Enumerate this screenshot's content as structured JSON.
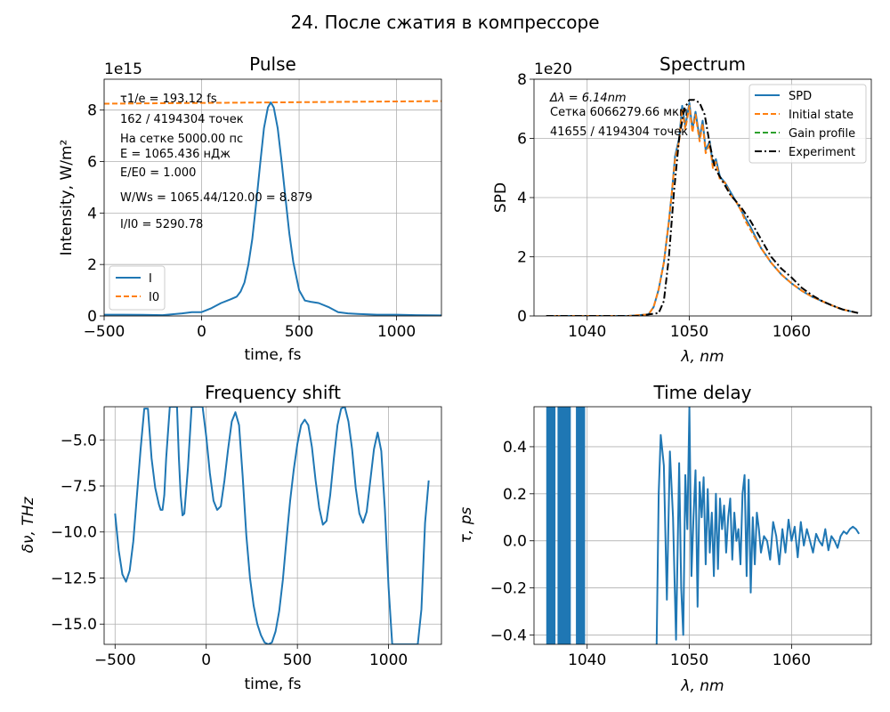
{
  "figure": {
    "suptitle": "24. После сжатия в компрессоре"
  },
  "colors": {
    "blue": "#1f77b4",
    "orange": "#ff7f0e",
    "green": "#2ca02c",
    "black": "#000000"
  },
  "chart_data": [
    {
      "id": "pulse",
      "type": "line",
      "title": "Pulse",
      "xlabel": "time, fs",
      "ylabel": "Intensity, W/m²",
      "offset_text": "1e15",
      "xlim": [
        -500,
        1230
      ],
      "ylim": [
        0,
        9.2
      ],
      "xticks": [
        -500,
        0,
        500,
        1000
      ],
      "yticks": [
        0,
        2,
        4,
        6,
        8
      ],
      "grid": true,
      "legend_position": "lower-left",
      "annotations": [
        "τ1/e = 193.12 fs",
        "162 / 4194304 точек",
        "На сетке 5000.00 пс",
        "E = 1065.436 нДж",
        "E/E0 = 1.000",
        "W/Ws = 1065.44/120.00 = 8.879",
        "I/I0 = 5290.78"
      ],
      "series": [
        {
          "name": "I",
          "style": "solid",
          "x": [
            -500,
            -400,
            -300,
            -200,
            -100,
            -50,
            0,
            50,
            100,
            150,
            180,
            200,
            220,
            240,
            260,
            280,
            300,
            320,
            340,
            355,
            370,
            390,
            410,
            430,
            450,
            470,
            500,
            530,
            560,
            600,
            650,
            700,
            750,
            800,
            900,
            1000,
            1100,
            1230
          ],
          "y": [
            0.05,
            0.05,
            0.04,
            0.03,
            0.1,
            0.15,
            0.15,
            0.3,
            0.5,
            0.65,
            0.75,
            0.95,
            1.3,
            2.0,
            3.0,
            4.4,
            5.9,
            7.3,
            8.1,
            8.3,
            8.1,
            7.3,
            6.0,
            4.6,
            3.2,
            2.1,
            1.0,
            0.6,
            0.55,
            0.5,
            0.35,
            0.15,
            0.1,
            0.08,
            0.05,
            0.05,
            0.03,
            0.02
          ]
        },
        {
          "name": "I0",
          "style": "dashed",
          "x": [
            -500,
            1230
          ],
          "y": [
            8.25,
            8.35
          ]
        }
      ]
    },
    {
      "id": "spectrum",
      "type": "line",
      "title": "Spectrum",
      "xlabel": "λ, nm",
      "ylabel": "SPD",
      "offset_text": "1e20",
      "xlim": [
        1034.8,
        1067.8
      ],
      "ylim": [
        0,
        8.0
      ],
      "xticks": [
        1040,
        1050,
        1060
      ],
      "yticks": [
        0,
        2,
        4,
        6,
        8
      ],
      "grid": true,
      "legend_position": "upper-right",
      "annotations": [
        "Δλ = 6.14nm",
        "Сетка 6066279.66 мкм",
        "41655 / 4194304 точек"
      ],
      "series": [
        {
          "name": "SPD",
          "style": "solid",
          "x": [
            1036,
            1040,
            1044,
            1046,
            1046.5,
            1047,
            1047.5,
            1048,
            1048.3,
            1048.6,
            1049,
            1049.3,
            1049.6,
            1050,
            1050.3,
            1050.6,
            1051,
            1051.3,
            1051.6,
            1052,
            1052.3,
            1052.6,
            1053,
            1053.5,
            1054,
            1054.5,
            1055,
            1055.5,
            1056,
            1057,
            1058,
            1059,
            1060,
            1061,
            1062,
            1063,
            1064,
            1065,
            1066.5
          ],
          "y": [
            0,
            0,
            0,
            0.05,
            0.3,
            0.9,
            1.8,
            3.2,
            4.2,
            5.4,
            6.0,
            7.1,
            6.4,
            7.2,
            6.3,
            6.9,
            6.0,
            6.6,
            5.6,
            5.9,
            5.1,
            5.3,
            4.7,
            4.5,
            4.2,
            3.9,
            3.6,
            3.3,
            3.0,
            2.3,
            1.8,
            1.4,
            1.1,
            0.85,
            0.65,
            0.5,
            0.35,
            0.22,
            0.1
          ]
        },
        {
          "name": "Initial state",
          "style": "dashed",
          "x": [
            1036,
            1040,
            1044,
            1046,
            1046.5,
            1047,
            1047.5,
            1048,
            1048.3,
            1048.6,
            1049,
            1049.3,
            1049.6,
            1050,
            1050.3,
            1050.6,
            1051,
            1051.3,
            1051.6,
            1052,
            1052.3,
            1052.6,
            1053,
            1053.5,
            1054,
            1054.5,
            1055,
            1055.5,
            1056,
            1057,
            1058,
            1059,
            1060,
            1061,
            1062,
            1063,
            1064,
            1065,
            1066.5
          ],
          "y": [
            0,
            0,
            0,
            0.05,
            0.3,
            0.9,
            1.8,
            3.2,
            4.2,
            5.3,
            5.9,
            7.0,
            6.3,
            7.1,
            6.2,
            6.8,
            5.9,
            6.5,
            5.5,
            5.8,
            5.0,
            5.2,
            4.6,
            4.5,
            4.1,
            3.9,
            3.6,
            3.2,
            2.9,
            2.3,
            1.8,
            1.4,
            1.1,
            0.85,
            0.65,
            0.5,
            0.35,
            0.22,
            0.1
          ]
        },
        {
          "name": "Gain profile",
          "style": "dashed",
          "x": [],
          "y": []
        },
        {
          "name": "Experiment",
          "style": "dashdot",
          "x": [
            1036,
            1040,
            1045,
            1047,
            1047.5,
            1048,
            1048.5,
            1049,
            1049.5,
            1050,
            1050.5,
            1051,
            1051.5,
            1052,
            1052.5,
            1053,
            1053.5,
            1054,
            1055,
            1056,
            1057,
            1058,
            1059,
            1060,
            1061,
            1062,
            1063,
            1064,
            1065,
            1066.5
          ],
          "y": [
            0,
            0,
            0,
            0.1,
            0.5,
            2.0,
            4.2,
            6.0,
            7.0,
            7.3,
            7.3,
            7.2,
            6.8,
            5.8,
            5.0,
            4.7,
            4.4,
            4.1,
            3.7,
            3.2,
            2.6,
            2.0,
            1.6,
            1.3,
            0.95,
            0.7,
            0.5,
            0.35,
            0.22,
            0.1
          ]
        }
      ]
    },
    {
      "id": "freqshift",
      "type": "line",
      "title": "Frequency shift",
      "xlabel": "time, fs",
      "ylabel": "δν, THz",
      "xlim": [
        -560,
        1290
      ],
      "ylim": [
        -16.1,
        -3.2
      ],
      "xticks": [
        -500,
        0,
        500,
        1000
      ],
      "yticks": [
        -15.0,
        -12.5,
        -10.0,
        -7.5,
        -5.0
      ],
      "grid": true,
      "series": [
        {
          "name": "",
          "style": "solid",
          "x": [
            -500,
            -480,
            -460,
            -440,
            -420,
            -400,
            -380,
            -360,
            -340,
            -320,
            -300,
            -280,
            -260,
            -250,
            -240,
            -230,
            -220,
            -200,
            -180,
            -160,
            -150,
            -140,
            -130,
            -120,
            -100,
            -80,
            -60,
            -40,
            -20,
            0,
            20,
            40,
            60,
            80,
            100,
            120,
            140,
            160,
            180,
            200,
            220,
            240,
            260,
            280,
            300,
            320,
            340,
            360,
            380,
            400,
            420,
            440,
            460,
            480,
            500,
            520,
            540,
            560,
            580,
            600,
            620,
            640,
            660,
            680,
            700,
            720,
            740,
            760,
            780,
            800,
            820,
            840,
            860,
            880,
            900,
            920,
            940,
            960,
            980,
            1000,
            1020,
            1040,
            1060,
            1080,
            1100,
            1120,
            1140,
            1160,
            1180,
            1200,
            1220
          ],
          "y": [
            -9.0,
            -11.0,
            -12.3,
            -12.7,
            -12.1,
            -10.5,
            -8.0,
            -5.5,
            -3.3,
            -3.3,
            -6.0,
            -7.6,
            -8.5,
            -8.8,
            -8.8,
            -8.0,
            -6.0,
            -3.2,
            -3.2,
            -3.2,
            -6.0,
            -8.0,
            -9.1,
            -9.0,
            -6.5,
            -3.2,
            -3.2,
            -3.2,
            -3.2,
            -4.8,
            -6.8,
            -8.3,
            -8.8,
            -8.6,
            -7.2,
            -5.5,
            -4.0,
            -3.5,
            -4.2,
            -7.0,
            -10.2,
            -12.5,
            -14.0,
            -15.0,
            -15.6,
            -16.0,
            -16.1,
            -16.0,
            -15.4,
            -14.3,
            -12.6,
            -10.4,
            -8.3,
            -6.6,
            -5.2,
            -4.2,
            -3.9,
            -4.2,
            -5.4,
            -7.2,
            -8.7,
            -9.6,
            -9.4,
            -8.0,
            -6.0,
            -4.2,
            -3.3,
            -3.2,
            -4.0,
            -5.5,
            -7.6,
            -9.0,
            -9.5,
            -8.9,
            -7.2,
            -5.5,
            -4.6,
            -5.6,
            -8.8,
            -13.0,
            -16.1,
            -16.1,
            -16.1,
            -16.1,
            -16.1,
            -16.1,
            -16.1,
            -16.1,
            -14.2,
            -9.5,
            -7.2
          ]
        }
      ]
    },
    {
      "id": "timedelay",
      "type": "line",
      "title": "Time delay",
      "xlabel": "λ, nm",
      "ylabel": "τ, ps",
      "xlim": [
        1034.8,
        1067.8
      ],
      "ylim": [
        -0.44,
        0.57
      ],
      "xticks": [
        1040,
        1050,
        1060
      ],
      "yticks": [
        -0.4,
        -0.2,
        0.0,
        0.2,
        0.4
      ],
      "grid": true,
      "bands_nm": [
        [
          1036.0,
          1036.9
        ],
        [
          1037.1,
          1038.4
        ],
        [
          1038.9,
          1039.8
        ]
      ],
      "series": [
        {
          "name": "",
          "style": "solid",
          "x": [
            1046.8,
            1047.0,
            1047.2,
            1047.5,
            1047.8,
            1048.1,
            1048.4,
            1048.7,
            1049.0,
            1049.2,
            1049.4,
            1049.6,
            1049.8,
            1050.0,
            1050.2,
            1050.4,
            1050.6,
            1050.8,
            1051.0,
            1051.2,
            1051.4,
            1051.6,
            1051.8,
            1052.0,
            1052.2,
            1052.4,
            1052.6,
            1052.8,
            1053.0,
            1053.2,
            1053.4,
            1053.6,
            1053.8,
            1054.0,
            1054.2,
            1054.4,
            1054.6,
            1054.8,
            1055.0,
            1055.2,
            1055.4,
            1055.6,
            1055.8,
            1056.0,
            1056.2,
            1056.4,
            1056.6,
            1056.8,
            1057.0,
            1057.3,
            1057.6,
            1057.9,
            1058.2,
            1058.5,
            1058.8,
            1059.1,
            1059.4,
            1059.7,
            1060.0,
            1060.3,
            1060.6,
            1060.9,
            1061.2,
            1061.5,
            1061.8,
            1062.1,
            1062.4,
            1062.7,
            1063.0,
            1063.3,
            1063.6,
            1063.9,
            1064.2,
            1064.5,
            1064.8,
            1065.1,
            1065.4,
            1065.7,
            1066.0,
            1066.3,
            1066.6
          ],
          "y": [
            -0.44,
            0.2,
            0.45,
            0.32,
            -0.25,
            0.38,
            0.1,
            -0.42,
            0.33,
            -0.2,
            -0.4,
            0.28,
            0.05,
            0.57,
            -0.15,
            0.1,
            0.3,
            -0.28,
            0.25,
            0.1,
            0.27,
            -0.1,
            0.22,
            -0.05,
            0.12,
            -0.15,
            0.2,
            -0.12,
            0.18,
            0.05,
            0.15,
            -0.05,
            0.1,
            0.18,
            -0.08,
            0.12,
            0.0,
            0.05,
            -0.1,
            0.2,
            0.28,
            -0.15,
            0.26,
            -0.22,
            0.1,
            -0.1,
            0.12,
            0.05,
            -0.05,
            0.02,
            0.0,
            -0.08,
            0.08,
            0.02,
            -0.1,
            0.05,
            -0.05,
            0.09,
            0.0,
            0.06,
            -0.07,
            0.08,
            -0.02,
            0.05,
            0.0,
            -0.05,
            0.03,
            0.0,
            -0.02,
            0.05,
            -0.04,
            0.02,
            0.0,
            -0.03,
            0.02,
            0.04,
            0.03,
            0.05,
            0.06,
            0.05,
            0.03
          ]
        }
      ]
    }
  ]
}
